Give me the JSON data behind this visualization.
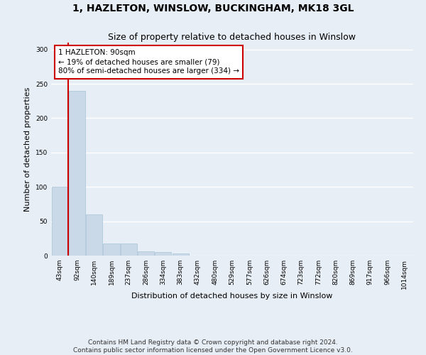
{
  "title": "1, HAZLETON, WINSLOW, BUCKINGHAM, MK18 3GL",
  "subtitle": "Size of property relative to detached houses in Winslow",
  "xlabel": "Distribution of detached houses by size in Winslow",
  "ylabel": "Number of detached properties",
  "bar_color": "#c9d9e8",
  "bar_edgecolor": "#a8c4d8",
  "background_color": "#e8eef5",
  "fig_background_color": "#e8eef5",
  "grid_color": "#ffffff",
  "categories": [
    "43sqm",
    "92sqm",
    "140sqm",
    "189sqm",
    "237sqm",
    "286sqm",
    "334sqm",
    "383sqm",
    "432sqm",
    "480sqm",
    "529sqm",
    "577sqm",
    "626sqm",
    "674sqm",
    "723sqm",
    "772sqm",
    "820sqm",
    "869sqm",
    "917sqm",
    "966sqm",
    "1014sqm"
  ],
  "values": [
    100,
    240,
    60,
    18,
    18,
    6,
    5,
    3,
    0,
    0,
    0,
    0,
    0,
    0,
    0,
    0,
    0,
    0,
    0,
    0,
    0
  ],
  "ylim": [
    0,
    310
  ],
  "yticks": [
    0,
    50,
    100,
    150,
    200,
    250,
    300
  ],
  "vline_color": "#cc0000",
  "annotation_box_text": "1 HAZLETON: 90sqm\n← 19% of detached houses are smaller (79)\n80% of semi-detached houses are larger (334) →",
  "annotation_box_edgecolor": "#cc0000",
  "footnote": "Contains HM Land Registry data © Crown copyright and database right 2024.\nContains public sector information licensed under the Open Government Licence v3.0.",
  "title_fontsize": 10,
  "subtitle_fontsize": 9,
  "xlabel_fontsize": 8,
  "ylabel_fontsize": 8,
  "tick_fontsize": 6.5,
  "annotation_fontsize": 7.5,
  "footnote_fontsize": 6.5
}
